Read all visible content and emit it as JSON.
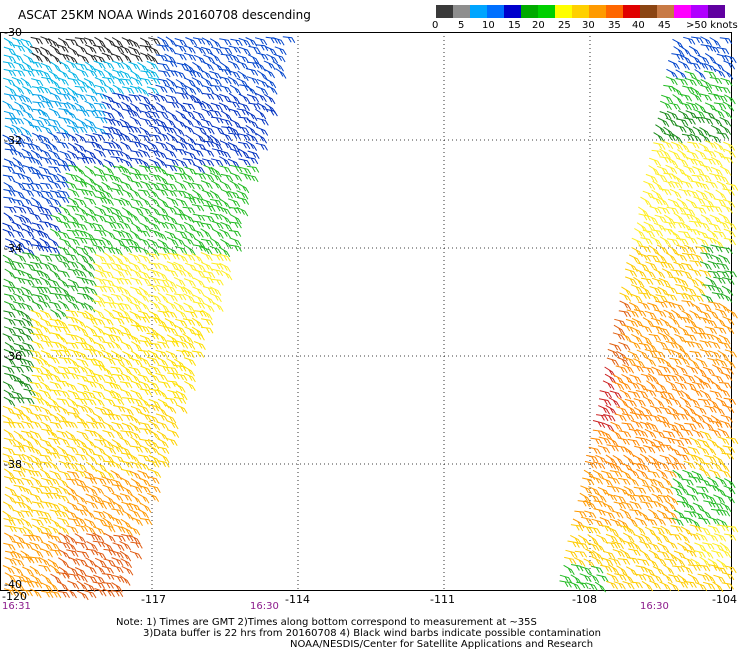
{
  "title": "ASCAT 25KM NOAA Winds 20160708 descending",
  "legend": {
    "colors": [
      "#3a3a3a",
      "#8e8e8e",
      "#00a5ff",
      "#0070ff",
      "#0000cc",
      "#00aa00",
      "#00d000",
      "#ffff00",
      "#ffd000",
      "#ff9a00",
      "#ff6600",
      "#e00000",
      "#8b4513",
      "#c87a45",
      "#ff00ff",
      "#b000ff",
      "#6000a0"
    ],
    "labels": [
      "0",
      "5",
      "10",
      "15",
      "20",
      "25",
      "30",
      "35",
      "40",
      "45",
      ">50 knots"
    ]
  },
  "axes": {
    "lat_labels": [
      "-30",
      "-32",
      "-34",
      "-36",
      "-38",
      "-40"
    ],
    "lon_labels": [
      "-120",
      "-117",
      "-114",
      "-111",
      "-108",
      "-104"
    ]
  },
  "pass_times": [
    "16:31",
    "16:30",
    "16:30"
  ],
  "notes": [
    "Note: 1) Times are GMT 2)Times along bottom correspond to measurement at ~35S",
    "3)Data buffer is 22 hrs from 20160708 4) Black wind barbs indicate possible contamination",
    "NOAA/NESDIS/Center for Satellite Applications and Research"
  ]
}
